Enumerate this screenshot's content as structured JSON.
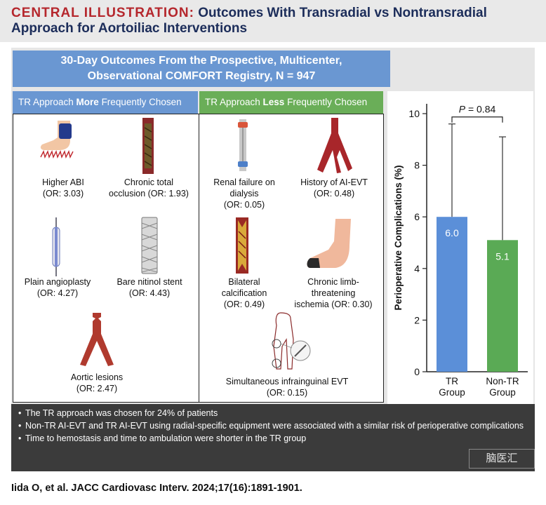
{
  "header": {
    "prefix": "CENTRAL ILLUSTRATION:",
    "title_rest": "Outcomes With Transradial vs Nontransradial",
    "title_line2": "Approach for Aortoiliac Interventions"
  },
  "banner": {
    "line1": "30-Day Outcomes From the Prospective, Multicenter,",
    "line2": "Observational COMFORT Registry, N = 947"
  },
  "left_column": {
    "head_pre": "TR Approach ",
    "head_bold": "More",
    "head_post": " Frequently Chosen",
    "items": [
      {
        "lines": [
          "Higher ABI",
          "(OR: 3.03)"
        ],
        "icon": "leg-cuff-icon"
      },
      {
        "lines": [
          "Chronic total",
          "occlusion (OR: 1.93)"
        ],
        "icon": "occluded-vessel-icon"
      },
      {
        "lines": [
          "Plain angioplasty",
          "(OR: 4.27)"
        ],
        "icon": "balloon-catheter-icon"
      },
      {
        "lines": [
          "Bare nitinol stent",
          "(OR: 4.43)"
        ],
        "icon": "stent-icon"
      },
      {
        "lines": [
          "Aortic lesions",
          "(OR: 2.47)"
        ],
        "icon": "aortic-bifurcation-icon"
      }
    ]
  },
  "right_column": {
    "head_pre": "TR Approach ",
    "head_bold": "Less",
    "head_post": " Frequently Chosen",
    "items": [
      {
        "lines": [
          "Renal failure on",
          "dialysis",
          "(OR: 0.05)"
        ],
        "icon": "dialysis-tube-icon"
      },
      {
        "lines": [
          "History of AI-EVT",
          "(OR: 0.48)"
        ],
        "icon": "aortoiliac-artery-icon"
      },
      {
        "lines": [
          "Bilateral",
          "calcification",
          "(OR: 0.49)"
        ],
        "icon": "calcified-vessel-icon"
      },
      {
        "lines": [
          "Chronic limb-",
          "threatening",
          "ischemia (OR: 0.30)"
        ],
        "icon": "ischemic-foot-icon"
      },
      {
        "lines": [
          "Simultaneous infrainguinal EVT",
          "(OR: 0.15)"
        ],
        "icon": "body-vasculature-icon"
      }
    ]
  },
  "chart_data": {
    "type": "bar",
    "categories": [
      "TR\nGroup",
      "Non-TR\nGroup"
    ],
    "values": [
      6.0,
      5.1
    ],
    "value_labels": [
      "6.0",
      "5.1"
    ],
    "error_upper": [
      9.6,
      9.1
    ],
    "bar_colors": [
      "#5b8fd8",
      "#5aaa55"
    ],
    "ylabel": "Perioperative Complications (%)",
    "ylim": [
      0,
      10
    ],
    "yticks": [
      "0",
      "2",
      "4",
      "6",
      "8",
      "10"
    ],
    "annotation_prefix": "P",
    "annotation_value": " = 0.84",
    "grid": false
  },
  "bullets": [
    "The TR approach was chosen for 24% of patients",
    "Non-TR AI-EVT and TR AI-EVT using radial-specific equipment were associated with a similar risk of perioperative complications",
    "Time to hemostasis and time to ambulation were shorter in the TR group"
  ],
  "watermark": "脑医汇",
  "footer": "Iida O, et al. JACC Cardiovasc Interv. 2024;17(16):1891-1901.",
  "colors": {
    "blue": "#6a97d2",
    "green": "#6aae58",
    "brand_red": "#b5272d",
    "navy": "#1c2d5a",
    "artery_red": "#a8262a"
  }
}
